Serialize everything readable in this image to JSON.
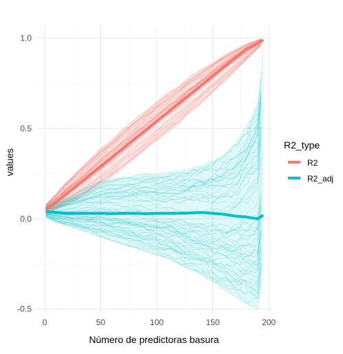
{
  "chart_data": {
    "type": "line",
    "title": "",
    "xlabel": "Número de predictoras basura",
    "ylabel": "values",
    "xlim": [
      -8,
      203
    ],
    "ylim": [
      -0.52,
      1.07
    ],
    "x_ticks": [
      0,
      50,
      100,
      150,
      200
    ],
    "x_tick_labels": [
      "0",
      "50",
      "100",
      "150",
      "200"
    ],
    "y_ticks": [
      -0.5,
      0.0,
      0.5,
      1.0
    ],
    "y_tick_labels": [
      "-0.5",
      "0.0",
      "0.5",
      "1.0"
    ],
    "grid": true,
    "legend": {
      "title": "R2_type",
      "position": "right",
      "entries": [
        {
          "label": "R2",
          "color": "#F8766D"
        },
        {
          "label": "R2_adj",
          "color": "#00BFC4"
        }
      ]
    },
    "series": [
      {
        "name": "R2",
        "color": "#F8766D",
        "x": [
          1,
          10,
          20,
          30,
          40,
          50,
          60,
          70,
          80,
          90,
          100,
          110,
          120,
          130,
          140,
          150,
          160,
          170,
          180,
          190,
          195
        ],
        "values": [
          0.05,
          0.09,
          0.14,
          0.19,
          0.24,
          0.29,
          0.34,
          0.39,
          0.44,
          0.49,
          0.54,
          0.59,
          0.64,
          0.69,
          0.74,
          0.79,
          0.84,
          0.89,
          0.94,
          0.97,
          0.99
        ],
        "band_upper": [
          0.08,
          0.14,
          0.21,
          0.27,
          0.33,
          0.39,
          0.44,
          0.5,
          0.55,
          0.6,
          0.65,
          0.7,
          0.74,
          0.79,
          0.83,
          0.87,
          0.91,
          0.94,
          0.97,
          0.99,
          1.0
        ],
        "band_lower": [
          0.03,
          0.05,
          0.08,
          0.11,
          0.15,
          0.19,
          0.23,
          0.28,
          0.33,
          0.38,
          0.43,
          0.48,
          0.53,
          0.59,
          0.64,
          0.7,
          0.76,
          0.82,
          0.88,
          0.94,
          0.97
        ]
      },
      {
        "name": "R2_adj",
        "color": "#00BFC4",
        "x": [
          1,
          10,
          20,
          30,
          40,
          50,
          60,
          70,
          80,
          90,
          100,
          110,
          120,
          130,
          140,
          150,
          160,
          170,
          180,
          190,
          195
        ],
        "values": [
          0.04,
          0.035,
          0.03,
          0.03,
          0.03,
          0.03,
          0.028,
          0.03,
          0.03,
          0.028,
          0.03,
          0.03,
          0.03,
          0.032,
          0.035,
          0.03,
          0.025,
          0.015,
          0.01,
          0.0,
          0.02
        ],
        "band_upper": [
          0.07,
          0.09,
          0.12,
          0.15,
          0.18,
          0.21,
          0.22,
          0.23,
          0.24,
          0.25,
          0.25,
          0.26,
          0.27,
          0.28,
          0.3,
          0.32,
          0.36,
          0.42,
          0.52,
          0.65,
          0.95
        ],
        "band_lower": [
          0.01,
          -0.02,
          -0.04,
          -0.06,
          -0.08,
          -0.1,
          -0.12,
          -0.14,
          -0.16,
          -0.18,
          -0.2,
          -0.22,
          -0.25,
          -0.28,
          -0.31,
          -0.35,
          -0.39,
          -0.43,
          -0.47,
          -0.5,
          -0.3
        ]
      }
    ]
  }
}
